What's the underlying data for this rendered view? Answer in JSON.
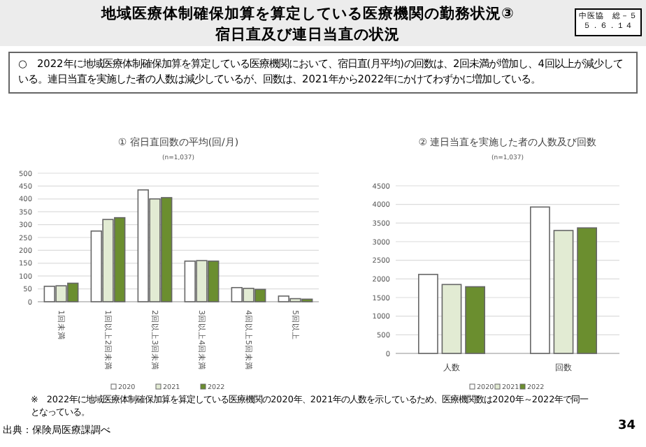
{
  "chart_data": [
    {
      "type": "bar",
      "title": "① 宿日直回数の平均(回/月)",
      "subtitle": "(n=1,037)",
      "categories": [
        "1回未満",
        "1回以上2回未満",
        "2回以上3回未満",
        "3回以上4回未満",
        "4回以上5回未満",
        "5回以上"
      ],
      "series": [
        {
          "name": "2020",
          "color": "#ffffff",
          "values": [
            60,
            275,
            435,
            158,
            55,
            22
          ]
        },
        {
          "name": "2021",
          "color": "#e2ebd3",
          "values": [
            62,
            320,
            400,
            160,
            52,
            12
          ]
        },
        {
          "name": "2022",
          "color": "#6b8e2f",
          "values": [
            72,
            327,
            405,
            158,
            48,
            10
          ]
        }
      ],
      "ylim": [
        0,
        500
      ],
      "yticks": [
        0,
        50,
        100,
        150,
        200,
        250,
        300,
        350,
        400,
        450,
        500
      ],
      "grid": "y",
      "legend": "bottom",
      "annotations": [
        "地域医療体制確保加算を算定している医療機関の勤務状況③",
        "宿日直及び連日当直の状況",
        "中医協　総－５",
        "５．６．１４",
        "○　2022年に地域医療体制確保加算を算定している医療機関において、宿日直(月平均)の回数は、2回未満が増加し、4回以上が減少している。連日当直を実施した者の人数は減少しているが、回数は、2021年から2022年にかけてわずかに増加している。",
        "※　2022年に地域医療体制確保加算を算定している医療機関の2020年、2021年の人数を示しているため、医療機関数は2020年～2022年で同一となっている。",
        "出典：保険局医療課調べ",
        "34"
      ]
    },
    {
      "type": "bar",
      "title": "② 連日当直を実施した者の人数及び回数",
      "subtitle": "(n=1,037)",
      "categories": [
        "人数",
        "回数"
      ],
      "series": [
        {
          "name": "2020",
          "color": "#ffffff",
          "values": [
            2120,
            3930
          ]
        },
        {
          "name": "2021",
          "color": "#e2ebd3",
          "values": [
            1850,
            3300
          ]
        },
        {
          "name": "2022",
          "color": "#6b8e2f",
          "values": [
            1790,
            3370
          ]
        }
      ],
      "ylim": [
        0,
        4500
      ],
      "yticks": [
        0,
        500,
        1000,
        1500,
        2000,
        2500,
        3000,
        3500,
        4000,
        4500
      ],
      "grid": "y",
      "legend": "bottom"
    }
  ]
}
